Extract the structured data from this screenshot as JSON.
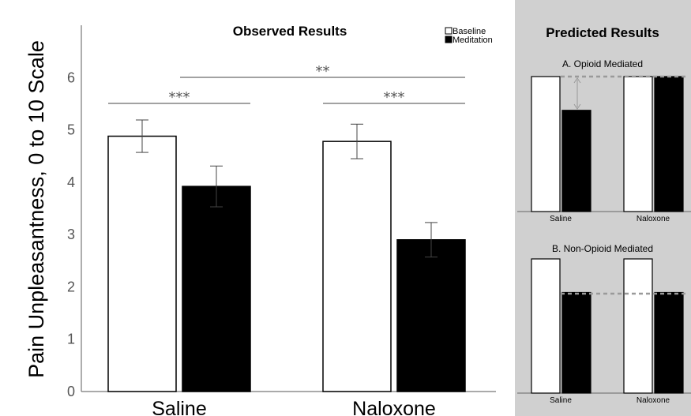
{
  "chart_data": [
    {
      "type": "bar",
      "title": "Observed Results",
      "ylabel": "Pain Unpleasantness, 0 to 10 Scale",
      "xlabel": "",
      "ylim": [
        0,
        7
      ],
      "yticks": [
        "0",
        "1",
        "2",
        "3",
        "4",
        "5",
        "6"
      ],
      "categories": [
        "Saline",
        "Naloxone"
      ],
      "legend_position": "top-right",
      "series": [
        {
          "name": "Baseline",
          "values": [
            4.88,
            4.78
          ],
          "errors": [
            0.31,
            0.33
          ],
          "fill": "#ffffff"
        },
        {
          "name": "Meditation",
          "values": [
            3.92,
            2.9
          ],
          "errors": [
            0.39,
            0.33
          ],
          "fill": "#000000"
        }
      ],
      "significance": [
        {
          "label": "***",
          "between": "Saline Baseline vs Meditation"
        },
        {
          "label": "***",
          "between": "Naloxone Baseline vs Meditation"
        },
        {
          "label": "**",
          "between": "Saline vs Naloxone"
        }
      ]
    },
    {
      "type": "bar",
      "panel": "Predicted Results",
      "subtitle": "A. Opioid Mediated",
      "categories": [
        "Saline",
        "Naloxone"
      ],
      "series": [
        {
          "name": "Baseline",
          "values": [
            1.0,
            1.0
          ]
        },
        {
          "name": "Meditation",
          "values": [
            0.75,
            1.0
          ]
        }
      ]
    },
    {
      "type": "bar",
      "panel": "Predicted Results",
      "subtitle": "B. Non-Opioid Mediated",
      "categories": [
        "Saline",
        "Naloxone"
      ],
      "series": [
        {
          "name": "Baseline",
          "values": [
            1.0,
            1.0
          ]
        },
        {
          "name": "Meditation",
          "values": [
            0.75,
            0.75
          ]
        }
      ]
    }
  ],
  "predicted": {
    "title": "Predicted Results",
    "background": "#d0d0d0"
  },
  "colors": {
    "baseline": "#ffffff",
    "meditation": "#000000",
    "axis": "#555555",
    "dashed": "#9a9a9a"
  }
}
